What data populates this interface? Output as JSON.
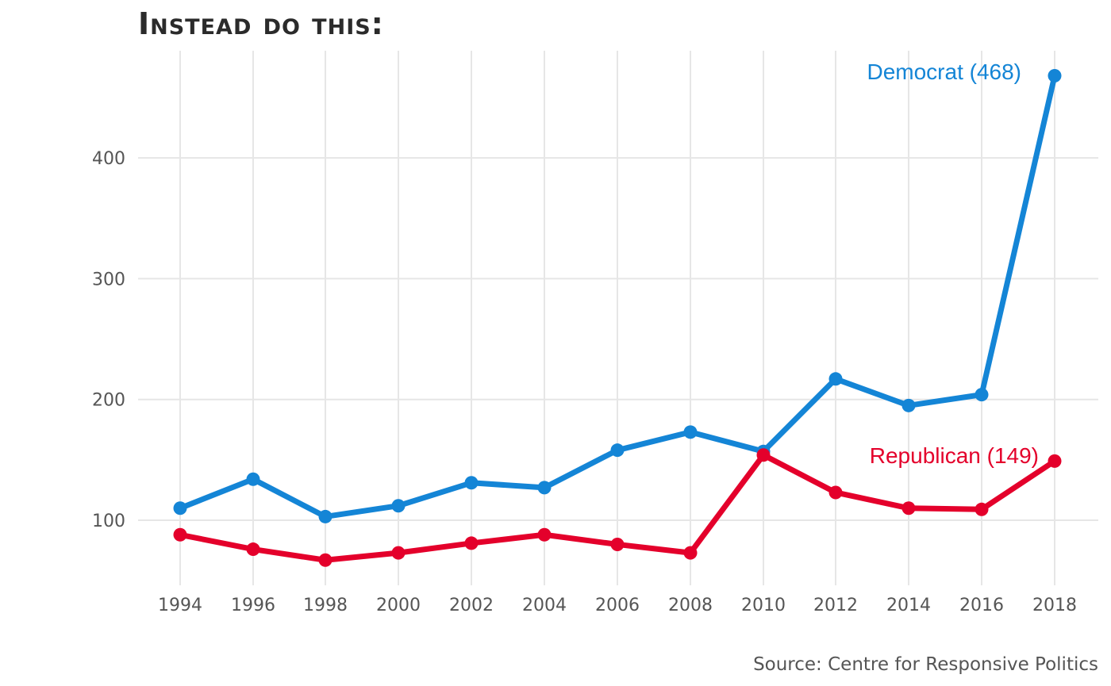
{
  "chart_data": {
    "type": "line",
    "title": "Instead do this:",
    "source": "Source: Centre for Responsive Politics",
    "x": [
      1994,
      1996,
      1998,
      2000,
      2002,
      2004,
      2006,
      2008,
      2010,
      2012,
      2014,
      2016,
      2018
    ],
    "ylim": [
      50,
      490
    ],
    "yticks": [
      100,
      200,
      300,
      400
    ],
    "grid": true,
    "series": [
      {
        "name": "Democrat",
        "label": "Democrat (468)",
        "color": "#1485d6",
        "values": [
          110,
          134,
          103,
          112,
          131,
          127,
          158,
          173,
          157,
          217,
          195,
          204,
          468
        ]
      },
      {
        "name": "Republican",
        "label": "Republican (149)",
        "color": "#e4002b",
        "values": [
          88,
          76,
          67,
          73,
          81,
          88,
          80,
          73,
          154,
          123,
          110,
          109,
          149
        ]
      }
    ]
  }
}
